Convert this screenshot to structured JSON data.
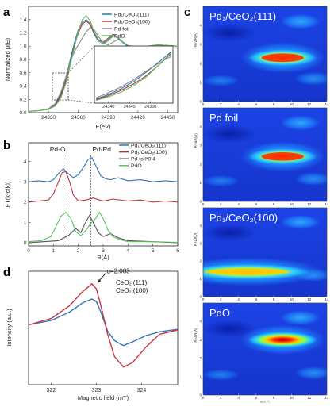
{
  "panels": {
    "a": "a",
    "b": "b",
    "c": "c",
    "d": "d"
  },
  "colors": {
    "blue": "#2f74b5",
    "red": "#b8323e",
    "grey": "#8a8a8a",
    "green": "#5dc25d"
  },
  "watermark": "知乎 @科学材料站",
  "chart_data": [
    {
      "id": "a",
      "type": "line",
      "xlabel": "E(eV)",
      "ylabel": "Normalized μ(E)",
      "xlim": [
        24310,
        24460
      ],
      "ylim": [
        0,
        1.6
      ],
      "xticks": [
        "24330",
        "24360",
        "24390",
        "24420",
        "24450"
      ],
      "yticks": [
        "0.0",
        "0.2",
        "0.4",
        "0.6",
        "0.8",
        "1.0",
        "1.2",
        "1.4"
      ],
      "legend": [
        "Pd₁/CeO₂(111)",
        "Pd₁/CeO₂(100)",
        "Pd foil",
        "PdO"
      ],
      "legend_position": "top-right",
      "series": [
        {
          "name": "Pd₁/CeO₂(111)",
          "color": "#2f74b5",
          "x": [
            24310,
            24320,
            24330,
            24337,
            24343,
            24348,
            24352,
            24356,
            24360,
            24364,
            24368,
            24372,
            24376,
            24380,
            24385,
            24390,
            24395,
            24400,
            24405,
            24410,
            24420,
            24430,
            24440,
            24450,
            24460
          ],
          "y": [
            0.02,
            0.03,
            0.05,
            0.12,
            0.3,
            0.55,
            0.8,
            1.05,
            1.25,
            1.36,
            1.4,
            1.33,
            1.18,
            1.08,
            1.04,
            1.1,
            1.16,
            1.12,
            1.05,
            1.0,
            0.97,
            1.0,
            1.02,
            1.01,
            1.0
          ]
        },
        {
          "name": "Pd₁/CeO₂(100)",
          "color": "#b8323e",
          "x": [
            24310,
            24320,
            24330,
            24337,
            24343,
            24348,
            24352,
            24356,
            24360,
            24364,
            24368,
            24372,
            24376,
            24380,
            24385,
            24390,
            24395,
            24400,
            24405,
            24410,
            24420,
            24430,
            24440,
            24450,
            24460
          ],
          "y": [
            0.02,
            0.03,
            0.05,
            0.11,
            0.27,
            0.5,
            0.75,
            1.0,
            1.2,
            1.33,
            1.38,
            1.33,
            1.2,
            1.1,
            1.06,
            1.12,
            1.18,
            1.13,
            1.06,
            1.01,
            0.98,
            1.0,
            1.02,
            1.01,
            1.0
          ]
        },
        {
          "name": "Pd foil",
          "color": "#8a8a8a",
          "x": [
            24310,
            24320,
            24330,
            24337,
            24343,
            24348,
            24352,
            24356,
            24360,
            24364,
            24368,
            24372,
            24376,
            24380,
            24385,
            24390,
            24395,
            24400,
            24405,
            24410,
            24420,
            24430,
            24440,
            24450,
            24460
          ],
          "y": [
            0.02,
            0.03,
            0.06,
            0.14,
            0.33,
            0.56,
            0.76,
            0.92,
            1.02,
            1.12,
            1.22,
            1.28,
            1.25,
            1.15,
            1.05,
            1.02,
            1.06,
            1.1,
            1.06,
            1.01,
            0.98,
            1.0,
            1.02,
            1.01,
            1.0
          ]
        },
        {
          "name": "PdO",
          "color": "#5dc25d",
          "x": [
            24310,
            24320,
            24330,
            24337,
            24343,
            24348,
            24352,
            24356,
            24360,
            24364,
            24368,
            24372,
            24376,
            24380,
            24385,
            24390,
            24395,
            24400,
            24405,
            24410,
            24420,
            24430,
            24440,
            24450,
            24460
          ],
          "y": [
            0.02,
            0.03,
            0.05,
            0.1,
            0.24,
            0.46,
            0.72,
            0.98,
            1.22,
            1.4,
            1.46,
            1.38,
            1.22,
            1.1,
            1.03,
            1.08,
            1.15,
            1.13,
            1.06,
            1.01,
            0.98,
            1.0,
            1.02,
            1.01,
            1.0
          ]
        }
      ],
      "inset": {
        "xlim": [
          24337,
          24355
        ],
        "xticks": [
          "24340",
          "24345",
          "24350"
        ],
        "series": [
          {
            "name": "Pd₁/CeO₂(111)",
            "color": "#2f74b5",
            "x": [
              24337,
              24340,
              24343,
              24346,
              24349,
              24352,
              24355
            ],
            "y": [
              0.12,
              0.2,
              0.3,
              0.42,
              0.58,
              0.75,
              0.93
            ]
          },
          {
            "name": "Pd₁/CeO₂(100)",
            "color": "#b8323e",
            "x": [
              24337,
              24340,
              24343,
              24346,
              24349,
              24352,
              24355
            ],
            "y": [
              0.11,
              0.18,
              0.27,
              0.38,
              0.52,
              0.7,
              0.9
            ]
          },
          {
            "name": "Pd foil",
            "color": "#8a8a8a",
            "x": [
              24337,
              24340,
              24343,
              24346,
              24349,
              24352,
              24355
            ],
            "y": [
              0.14,
              0.23,
              0.33,
              0.45,
              0.6,
              0.73,
              0.85
            ]
          },
          {
            "name": "PdO",
            "color": "#5dc25d",
            "x": [
              24337,
              24340,
              24343,
              24346,
              24349,
              24352,
              24355
            ],
            "y": [
              0.1,
              0.16,
              0.24,
              0.35,
              0.5,
              0.7,
              0.92
            ]
          }
        ]
      }
    },
    {
      "id": "b",
      "type": "line",
      "xlabel": "R(Å)",
      "ylabel": "FT(k³c(k))",
      "xlim": [
        0,
        6
      ],
      "ylim": [
        0,
        5
      ],
      "xticks": [
        "0",
        "1",
        "2",
        "3",
        "4",
        "5",
        "6"
      ],
      "yticks": [
        "0",
        "1",
        "2",
        "3",
        "4"
      ],
      "annotations": [
        {
          "text": "Pd-O",
          "x": 1.55
        },
        {
          "text": "Pd-Pd",
          "x": 2.5
        }
      ],
      "legend": [
        "Pd₁/CeO₂(111)",
        "Pd₁/CeO₂(100)",
        "Pd foil*0.4",
        "PdO"
      ],
      "legend_position": "top-right",
      "series": [
        {
          "name": "Pd₁/CeO₂(111)",
          "color": "#2f74b5",
          "x": [
            0,
            0.4,
            0.8,
            1.0,
            1.2,
            1.4,
            1.6,
            1.8,
            2.0,
            2.2,
            2.4,
            2.55,
            2.7,
            2.9,
            3.1,
            3.3,
            3.6,
            4.0,
            4.5,
            5.0,
            5.5,
            6.0
          ],
          "y": [
            3.0,
            3.05,
            3.0,
            3.1,
            3.4,
            3.65,
            3.4,
            3.2,
            3.35,
            3.7,
            4.1,
            4.2,
            3.8,
            3.3,
            3.15,
            3.1,
            3.2,
            3.05,
            3.1,
            3.0,
            3.05,
            3.0
          ]
        },
        {
          "name": "Pd₁/CeO₂(100)",
          "color": "#b8323e",
          "x": [
            0,
            0.4,
            0.8,
            1.0,
            1.2,
            1.35,
            1.5,
            1.65,
            1.8,
            2.0,
            2.3,
            2.6,
            3.0,
            3.4,
            4.0,
            4.5,
            5.0,
            5.5,
            6.0
          ],
          "y": [
            2.0,
            2.05,
            2.1,
            2.4,
            3.0,
            3.45,
            3.5,
            3.0,
            2.35,
            2.05,
            2.1,
            2.2,
            2.05,
            2.15,
            2.05,
            2.1,
            2.0,
            2.05,
            2.0
          ]
        },
        {
          "name": "Pd foil*0.4",
          "color": "#555555",
          "x": [
            0,
            0.6,
            1.2,
            1.6,
            1.9,
            2.1,
            2.25,
            2.45,
            2.6,
            2.8,
            3.0,
            3.3,
            3.6,
            4.0,
            5.0,
            6.0
          ],
          "y": [
            0.0,
            0.05,
            0.1,
            0.35,
            0.7,
            0.5,
            0.9,
            1.35,
            1.0,
            0.5,
            0.3,
            0.45,
            0.25,
            0.1,
            0.05,
            0.0
          ]
        },
        {
          "name": "PdO",
          "color": "#5dc25d",
          "x": [
            0,
            0.5,
            0.9,
            1.1,
            1.3,
            1.5,
            1.7,
            1.9,
            2.1,
            2.3,
            2.5,
            2.7,
            2.85,
            3.0,
            3.2,
            3.4,
            3.7,
            4.0,
            5.0,
            6.0
          ],
          "y": [
            0.05,
            0.1,
            0.3,
            0.8,
            1.3,
            1.5,
            1.2,
            0.55,
            0.35,
            0.6,
            0.95,
            1.2,
            1.5,
            1.2,
            0.6,
            0.3,
            0.15,
            0.05,
            0.05,
            0.02
          ]
        }
      ]
    },
    {
      "id": "d",
      "type": "line",
      "xlabel": "Magnetic field (mT)",
      "ylabel": "Intensity (a.u.)",
      "xlim": [
        321.5,
        324.8
      ],
      "xticks": [
        "322",
        "323",
        "324"
      ],
      "annotations": [
        {
          "text": "g=2.003",
          "x": 323.0
        }
      ],
      "legend": [
        "CeO₂ (111)",
        "CeO₂ (100)"
      ],
      "legend_position": "top-right",
      "series": [
        {
          "name": "CeO₂ (111)",
          "color": "#2f74b5",
          "x": [
            321.5,
            322.0,
            322.4,
            322.7,
            322.9,
            323.0,
            323.1,
            323.25,
            323.4,
            323.6,
            323.8,
            324.1,
            324.4,
            324.8
          ],
          "y": [
            0.05,
            0.12,
            0.25,
            0.4,
            0.46,
            0.42,
            0.25,
            -0.05,
            -0.2,
            -0.28,
            -0.22,
            -0.12,
            -0.06,
            -0.02
          ]
        },
        {
          "name": "CeO₂ (100)",
          "color": "#c93443",
          "x": [
            321.5,
            322.0,
            322.4,
            322.7,
            322.9,
            323.0,
            323.1,
            323.25,
            323.4,
            323.6,
            323.8,
            324.1,
            324.4,
            324.8
          ],
          "y": [
            0.05,
            0.15,
            0.35,
            0.58,
            0.7,
            0.62,
            0.35,
            -0.1,
            -0.45,
            -0.62,
            -0.55,
            -0.3,
            -0.1,
            -0.03
          ]
        }
      ]
    },
    {
      "id": "c",
      "type": "heatmap",
      "xlabel": "k(Å⁻¹)",
      "ylabel": "R+ΔR(Å)",
      "xticks": [
        "0",
        "2",
        "4",
        "6",
        "8",
        "10",
        "12",
        "14"
      ],
      "yticks": [
        "0",
        "1",
        "2",
        "3",
        "4"
      ],
      "maps": [
        {
          "title": "Pd₁/CeO₂(111)",
          "hotspot": {
            "k": 9.0,
            "R": 2.3,
            "level": 0.85
          }
        },
        {
          "title": "Pd foil",
          "hotspot": {
            "k": 9.0,
            "R": 2.4,
            "level": 0.78
          }
        },
        {
          "title": "Pd₁/CeO₂(100)",
          "hotspot": {
            "k": 5.0,
            "R": 1.4,
            "level": 0.8
          }
        },
        {
          "title": "PdO",
          "hotspot": {
            "k": 9.0,
            "R": 3.0,
            "level": 1.0
          }
        }
      ]
    }
  ]
}
